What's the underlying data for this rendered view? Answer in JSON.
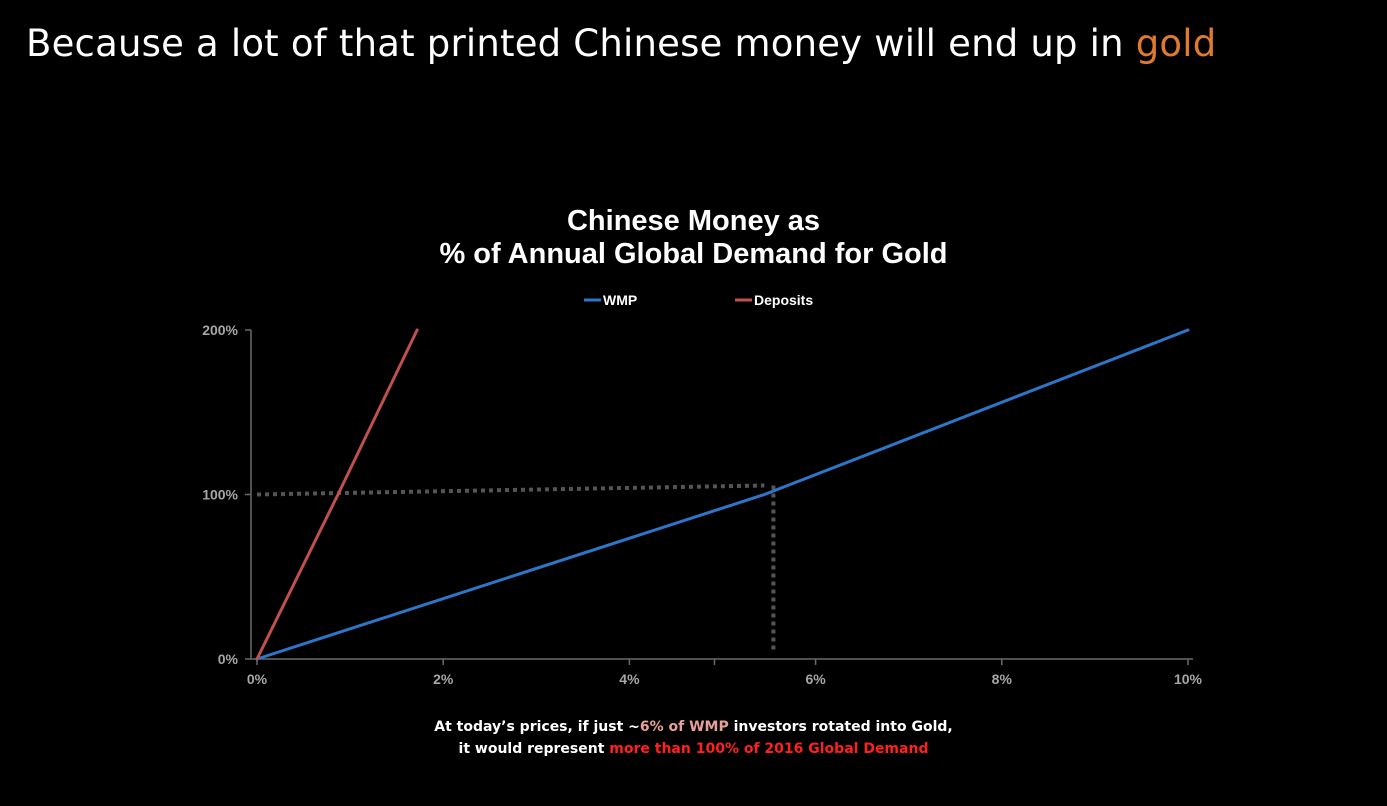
{
  "slide": {
    "title_prefix": "Because a lot of that printed Chinese money will end up in ",
    "title_accent": "gold",
    "accent_color": "#e07a2e"
  },
  "chart_data": {
    "type": "line",
    "title_line1": "Chinese Money as",
    "title_line2": "% of Annual Global Demand for Gold",
    "xlabel": "",
    "ylabel": "",
    "x_ticks": [
      "0%",
      "2%",
      "4%",
      "6%",
      "8%",
      "10%"
    ],
    "x_tick_values": [
      0,
      2,
      4,
      6,
      8,
      10
    ],
    "y_ticks": [
      "0%",
      "100%",
      "200%"
    ],
    "y_tick_values": [
      0,
      100,
      200
    ],
    "xlim": [
      0,
      10
    ],
    "ylim": [
      0,
      200
    ],
    "grid": false,
    "legend_position": "top-center",
    "series": [
      {
        "name": "WMP",
        "color": "#2e75c8",
        "x": [
          0,
          5.45,
          10
        ],
        "y": [
          0,
          100,
          200
        ]
      },
      {
        "name": "Deposits",
        "color": "#c0504d",
        "x": [
          0,
          0.87,
          1.72
        ],
        "y": [
          0,
          100,
          200
        ]
      }
    ],
    "reference_line": {
      "y": 100,
      "x_intersect": 5.45
    }
  },
  "caption": {
    "line1_part1": "At today’s prices, if just ~",
    "line1_highlight": "6% of WMP",
    "line1_part2": " investors rotated into Gold,",
    "line2_part1": "it would represent ",
    "line2_highlight": "more than 100% of 2016 Global Demand",
    "highlight_color_1": "#e8a19a",
    "highlight_color_2": "#ff2020"
  }
}
